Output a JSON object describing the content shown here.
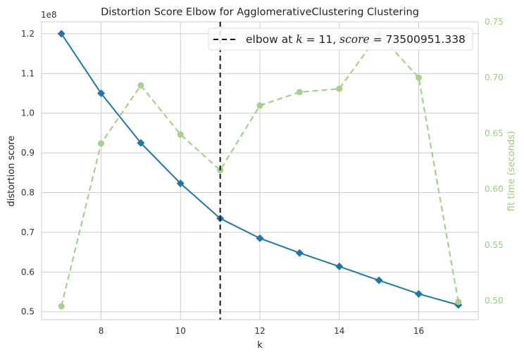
{
  "chart_data": {
    "type": "line",
    "title": "Distortion Score Elbow for AgglomerativeClustering Clustering",
    "xlabel": "k",
    "ylabel": "distortion score",
    "ylabel_right": "fit time (seconds)",
    "offset_label": "1e8",
    "x": [
      7,
      8,
      9,
      10,
      11,
      12,
      13,
      14,
      15,
      16,
      17
    ],
    "xlim": [
      6.5,
      17.5
    ],
    "xticks": [
      8,
      10,
      12,
      14,
      16
    ],
    "ylim": [
      0.48,
      1.23
    ],
    "yticks": [
      0.5,
      0.6,
      0.7,
      0.8,
      0.9,
      1.0,
      1.1,
      1.2
    ],
    "ylim_right": [
      0.483,
      0.75
    ],
    "yticks_right": [
      0.5,
      0.55,
      0.6,
      0.65,
      0.7,
      0.75
    ],
    "series": [
      {
        "values": [
          1.2,
          1.05,
          0.925,
          0.823,
          0.735,
          0.685,
          0.648,
          0.614,
          0.579,
          0.545,
          0.517
        ],
        "color": "#1f77a8",
        "axis": "left",
        "marker": "diamond"
      },
      {
        "values": [
          0.495,
          0.641,
          0.693,
          0.649,
          0.617,
          0.675,
          0.687,
          0.69,
          0.739,
          0.7,
          0.499
        ],
        "color": "#a8cf8c",
        "axis": "right",
        "marker": "circle",
        "dashed": true
      }
    ],
    "elbow": {
      "k": 11,
      "legend_prefix": "elbow at ",
      "k_sym": "k",
      "k_text": " = 11, ",
      "score_sym": "score",
      "score_text": " = 73500951.338"
    },
    "legend_position": "top-right",
    "grid": true
  }
}
